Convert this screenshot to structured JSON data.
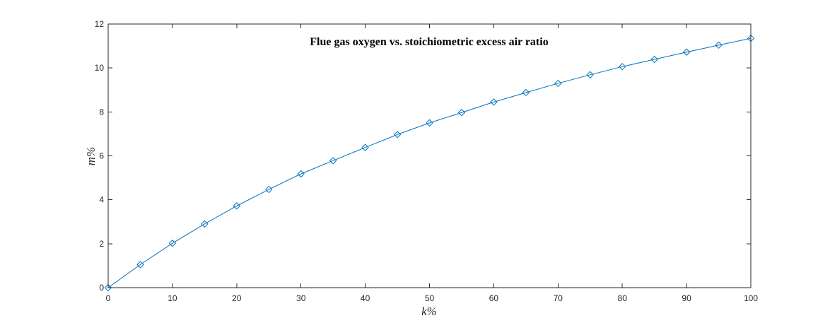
{
  "chart_data": {
    "type": "line",
    "title": "Flue gas oxygen vs. stoichiometric excess air ratio",
    "xlabel": "k%",
    "ylabel": "m%",
    "xlim": [
      0,
      100
    ],
    "ylim": [
      0,
      12
    ],
    "x_ticks": [
      0,
      10,
      20,
      30,
      40,
      50,
      60,
      70,
      80,
      90,
      100
    ],
    "y_ticks": [
      0,
      2,
      4,
      6,
      8,
      10,
      12
    ],
    "grid": false,
    "marker": "diamond",
    "line_color": "#0072BD",
    "series": [
      {
        "x": [
          0,
          5,
          10,
          15,
          20,
          25,
          30,
          35,
          40,
          45,
          50,
          55,
          60,
          65,
          70,
          75,
          80,
          85,
          90,
          95,
          100
        ],
        "values": [
          0,
          1.05,
          2.02,
          2.9,
          3.72,
          4.47,
          5.18,
          5.78,
          6.38,
          6.97,
          7.5,
          7.97,
          8.45,
          8.88,
          9.3,
          9.69,
          10.06,
          10.39,
          10.72,
          11.04,
          11.35
        ]
      }
    ]
  }
}
